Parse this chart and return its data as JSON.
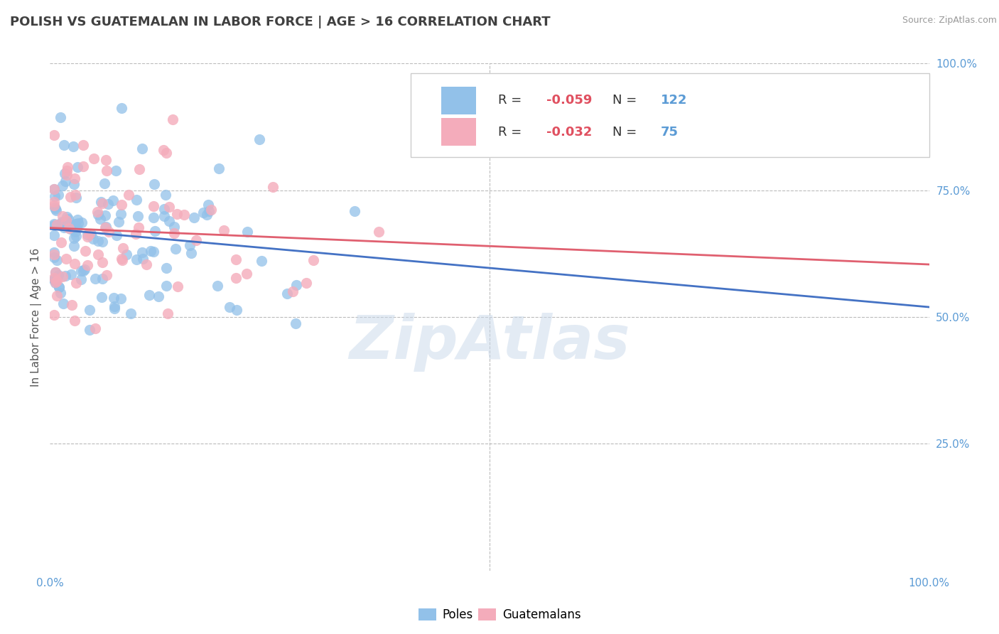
{
  "title": "POLISH VS GUATEMALAN IN LABOR FORCE | AGE > 16 CORRELATION CHART",
  "source_text": "Source: ZipAtlas.com",
  "ylabel": "In Labor Force | Age > 16",
  "poles_R": -0.059,
  "poles_N": 122,
  "guatemalans_R": -0.032,
  "guatemalans_N": 75,
  "poles_color": "#92C1E9",
  "poles_line_color": "#4472C4",
  "guatemalans_color": "#F4ACBB",
  "guatemalans_line_color": "#E06070",
  "background_color": "#FFFFFF",
  "grid_color": "#BBBBBB",
  "watermark_text": "ZipAtlas",
  "axes_label_color": "#5B9BD5",
  "title_color": "#404040",
  "title_fontsize": 13,
  "legend_R_color": "#E05060",
  "legend_N_color": "#5B9BD5"
}
